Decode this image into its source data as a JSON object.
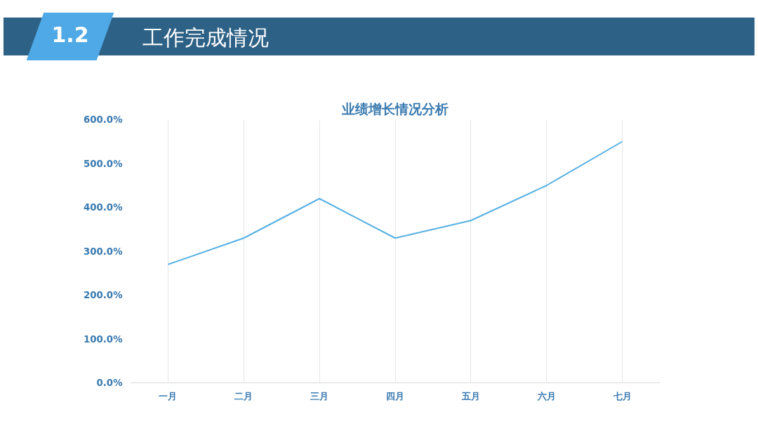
{
  "chart_data": {
    "type": "line",
    "title": "业绩增长情况分析",
    "annotations": [
      "1.2",
      "工作完成情况"
    ],
    "categories": [
      "一月",
      "二月",
      "三月",
      "四月",
      "五月",
      "六月",
      "七月"
    ],
    "series": [
      {
        "color": "#56b0e3",
        "values": [
          270,
          330,
          420,
          330,
          370,
          450,
          550
        ]
      }
    ],
    "ylim": [
      0,
      600
    ],
    "yticks": [
      {
        "value": 0,
        "label": "0.0%"
      },
      {
        "value": 100,
        "label": "100.0%"
      },
      {
        "value": 200,
        "label": "200.0%"
      },
      {
        "value": 300,
        "label": "300.0%"
      },
      {
        "value": 400,
        "label": "400.0%"
      },
      {
        "value": 500,
        "label": "500.0%"
      },
      {
        "value": 600,
        "label": "600.0%"
      }
    ],
    "grid": "x",
    "marker": "none",
    "line_style": "solid"
  }
}
